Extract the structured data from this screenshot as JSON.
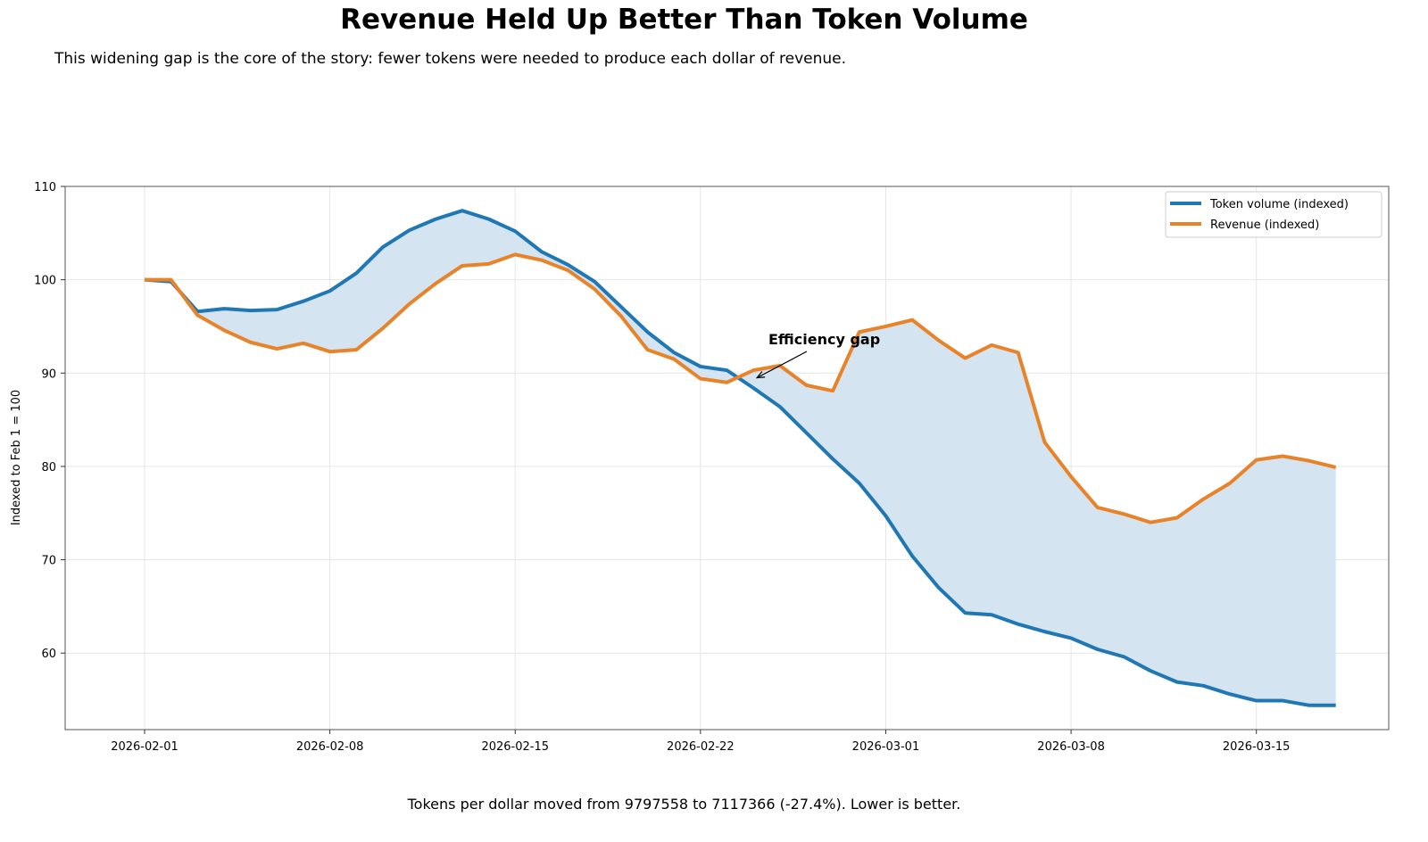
{
  "title": "Revenue Held Up Better Than Token Volume",
  "subtitle": "This widening gap is the core of the story: fewer tokens were needed to produce each dollar of revenue.",
  "footer": "Tokens per dollar moved from 9797558 to 7117366 (-27.4%). Lower is better.",
  "chart_data": {
    "type": "line",
    "title": "Revenue Held Up Better Than Token Volume",
    "xlabel": "",
    "ylabel": "Indexed to Feb 1 = 100",
    "xlim": [
      "2026-01-29",
      "2026-03-20"
    ],
    "ylim": [
      51.8,
      110
    ],
    "grid": true,
    "legend": "top-right",
    "x_ticks": [
      "2026-02-01",
      "2026-02-08",
      "2026-02-15",
      "2026-02-22",
      "2026-03-01",
      "2026-03-08",
      "2026-03-15"
    ],
    "y_ticks": [
      60,
      70,
      80,
      90,
      100,
      110
    ],
    "x": [
      "2026-02-01",
      "2026-02-02",
      "2026-02-03",
      "2026-02-04",
      "2026-02-05",
      "2026-02-06",
      "2026-02-07",
      "2026-02-08",
      "2026-02-09",
      "2026-02-10",
      "2026-02-11",
      "2026-02-12",
      "2026-02-13",
      "2026-02-14",
      "2026-02-15",
      "2026-02-16",
      "2026-02-17",
      "2026-02-18",
      "2026-02-19",
      "2026-02-20",
      "2026-02-21",
      "2026-02-22",
      "2026-02-23",
      "2026-02-24",
      "2026-02-25",
      "2026-02-26",
      "2026-02-27",
      "2026-02-28",
      "2026-03-01",
      "2026-03-02",
      "2026-03-03",
      "2026-03-04",
      "2026-03-05",
      "2026-03-06",
      "2026-03-07",
      "2026-03-08",
      "2026-03-09",
      "2026-03-10",
      "2026-03-11",
      "2026-03-12",
      "2026-03-13",
      "2026-03-14",
      "2026-03-15",
      "2026-03-16",
      "2026-03-17",
      "2026-03-18"
    ],
    "series": [
      {
        "name": "Token volume (indexed)",
        "color": "#1f77b4",
        "values": [
          100,
          99.8,
          96.6,
          96.9,
          96.7,
          96.8,
          97.7,
          98.8,
          100.7,
          103.5,
          105.3,
          106.5,
          107.4,
          106.5,
          105.2,
          103.0,
          101.6,
          99.8,
          97.1,
          94.4,
          92.2,
          90.7,
          90.3,
          88.4,
          86.4,
          83.6,
          80.8,
          78.2,
          74.7,
          70.4,
          67.0,
          64.3,
          64.1,
          63.1,
          62.3,
          61.6,
          60.4,
          59.6,
          58.1,
          56.9,
          56.5,
          55.6,
          54.9,
          54.9,
          54.4,
          54.4
        ]
      },
      {
        "name": "Revenue (indexed)",
        "color": "#e8832a",
        "values": [
          100,
          100,
          96.2,
          94.6,
          93.3,
          92.6,
          93.2,
          92.3,
          92.5,
          94.8,
          97.4,
          99.6,
          101.5,
          101.7,
          102.7,
          102.1,
          101.0,
          99.0,
          96.1,
          92.5,
          91.5,
          89.4,
          89.0,
          90.3,
          90.8,
          88.7,
          88.1,
          94.4,
          95.0,
          95.7,
          93.5,
          91.6,
          93.0,
          92.2,
          82.6,
          78.9,
          75.6,
          74.9,
          74.0,
          74.5,
          76.5,
          78.2,
          80.7,
          81.1,
          80.6,
          79.9
        ]
      }
    ],
    "fill_between": {
      "color": "#d4e4f0"
    },
    "annotation": {
      "text": "Efficiency gap",
      "xy": [
        "2026-02-24",
        89.5
      ],
      "xytext": [
        "2026-02-25",
        93.5
      ]
    }
  }
}
